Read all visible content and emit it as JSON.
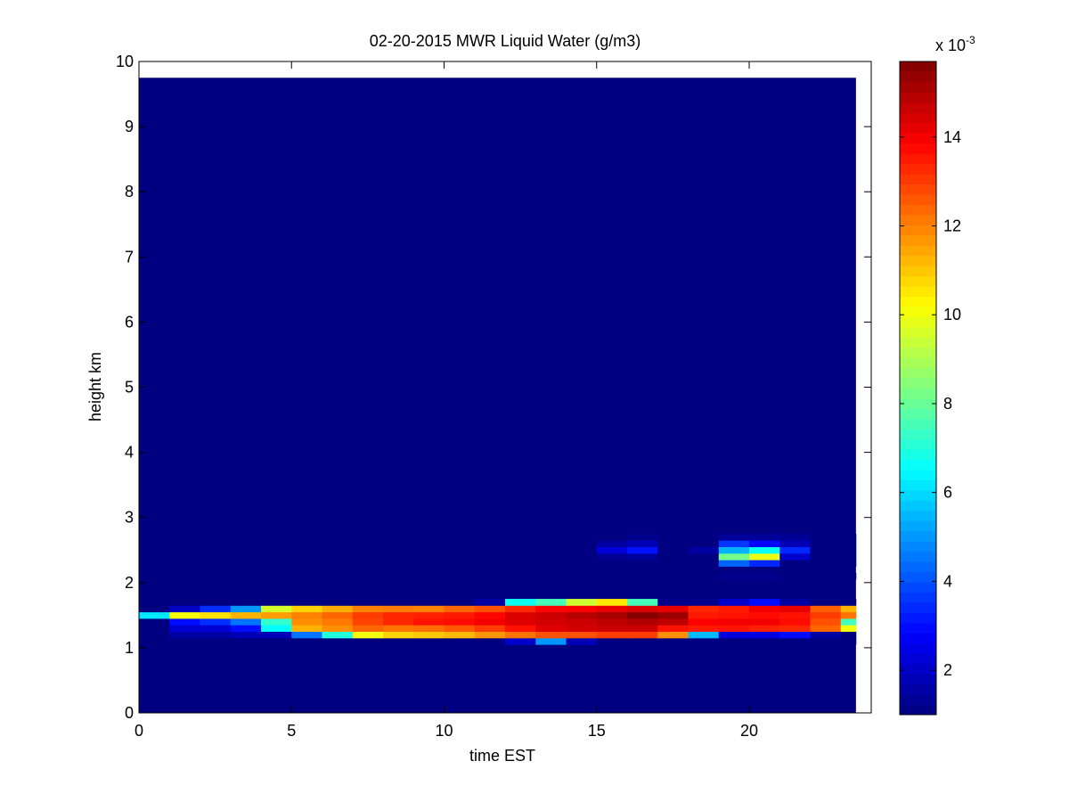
{
  "chart_data": {
    "type": "heatmap",
    "title": "02-20-2015 MWR Liquid Water (g/m3)",
    "xlabel": "time EST",
    "ylabel": "height km",
    "xlim": [
      0,
      24
    ],
    "ylim": [
      0,
      10
    ],
    "x_ticks": [
      0,
      5,
      10,
      15,
      20
    ],
    "y_ticks": [
      0,
      1,
      2,
      3,
      4,
      5,
      6,
      7,
      8,
      9,
      10
    ],
    "colormap": "jet",
    "colorbar": {
      "min": 1,
      "max": 15.7,
      "ticks": [
        2,
        4,
        6,
        8,
        10,
        12,
        14
      ],
      "scale_label_base": "x 10",
      "scale_label_exp": "-3"
    },
    "background_value": 1,
    "data_extent": {
      "x": [
        0,
        23.5
      ],
      "y": [
        0,
        9.75
      ]
    },
    "time_bins": [
      0.5,
      1.5,
      2.5,
      3.5,
      4.5,
      5.5,
      6.5,
      7.5,
      8.5,
      9.5,
      10.5,
      11.5,
      12.5,
      13.5,
      14.5,
      15.5,
      16.5,
      17.5,
      18.5,
      19.5,
      20.5,
      21.5,
      22.5,
      23.5
    ],
    "height_bins": [
      [
        1.05,
        1.15
      ],
      [
        1.15,
        1.25
      ],
      [
        1.25,
        1.35
      ],
      [
        1.35,
        1.45
      ],
      [
        1.45,
        1.55
      ],
      [
        1.55,
        1.65
      ],
      [
        1.65,
        1.75
      ],
      [
        2.05,
        2.15
      ],
      [
        2.25,
        2.35
      ],
      [
        2.35,
        2.45
      ],
      [
        2.45,
        2.55
      ],
      [
        2.55,
        2.65
      ],
      [
        2.65,
        2.75
      ]
    ],
    "cells": [
      {
        "height_bin": 0,
        "values": [
          1,
          1,
          1,
          1,
          1,
          1,
          1,
          1,
          1,
          1,
          1,
          1,
          2.1,
          5,
          1.8,
          1,
          1,
          1,
          1,
          1,
          1,
          1,
          1,
          1
        ]
      },
      {
        "height_bin": 1,
        "values": [
          1,
          1.5,
          1.5,
          1.8,
          1.8,
          4.5,
          7,
          10,
          10.8,
          11,
          11.2,
          11.7,
          12.2,
          12.7,
          12.7,
          13,
          13,
          11.8,
          5.5,
          2.3,
          2.4,
          3,
          1.5,
          1
        ]
      },
      {
        "height_bin": 2,
        "values": [
          1,
          2.2,
          2.2,
          3,
          6.5,
          11.3,
          11.8,
          12.4,
          12.2,
          12.3,
          12.6,
          13,
          13.6,
          14.3,
          14.5,
          14.6,
          14.6,
          13.6,
          13.5,
          13.6,
          13.4,
          13.3,
          12.4,
          10
        ]
      },
      {
        "height_bin": 3,
        "values": [
          1,
          3,
          3.5,
          4.5,
          7.2,
          11.8,
          12.1,
          12.9,
          13.3,
          13.6,
          13.7,
          14,
          14.3,
          14.5,
          14.6,
          14.8,
          15,
          14.8,
          13.9,
          14,
          14,
          13.7,
          12.7,
          7.5
        ]
      },
      {
        "height_bin": 4,
        "values": [
          6.2,
          10.1,
          10.6,
          11.3,
          11.6,
          12,
          12.4,
          13,
          13.3,
          13.4,
          13.5,
          13.8,
          14.4,
          14.6,
          14.9,
          15.1,
          15.6,
          15.3,
          13.5,
          13.6,
          13.7,
          13.6,
          13,
          12.2
        ]
      },
      {
        "height_bin": 5,
        "values": [
          1,
          2,
          3.5,
          5,
          9.6,
          10.8,
          11.4,
          12,
          12.1,
          12,
          12.4,
          12.7,
          13.3,
          13.8,
          13.9,
          14.2,
          14.4,
          14.2,
          13.3,
          13.5,
          14,
          14.2,
          12.5,
          11.3
        ]
      },
      {
        "height_bin": 6,
        "values": [
          1,
          1,
          1,
          1,
          1,
          1,
          1,
          1,
          1,
          1,
          1,
          1.5,
          6.7,
          7.5,
          9.5,
          10.5,
          7.5,
          1.2,
          1.2,
          2.1,
          3,
          1.5,
          1,
          1
        ]
      },
      {
        "height_bin": 7,
        "values": [
          1,
          1,
          1,
          1,
          1,
          1,
          1,
          1,
          1,
          1,
          1,
          1,
          1,
          1,
          1,
          1,
          1,
          1,
          1,
          1.2,
          1.2,
          1,
          1,
          1
        ]
      },
      {
        "height_bin": 8,
        "values": [
          1,
          1,
          1,
          1,
          1,
          1,
          1,
          1,
          1,
          1,
          1,
          1,
          1,
          1,
          1,
          1,
          1,
          1,
          1,
          4.3,
          3.4,
          1,
          1,
          1
        ]
      },
      {
        "height_bin": 9,
        "values": [
          1,
          1,
          1,
          1,
          1,
          1,
          1,
          1,
          1,
          1,
          1,
          1,
          1,
          1,
          1,
          1.3,
          1.4,
          1,
          1,
          8.2,
          9.9,
          2.1,
          1,
          1
        ]
      },
      {
        "height_bin": 10,
        "values": [
          1,
          1,
          1,
          1,
          1,
          1,
          1,
          1,
          1,
          1,
          1,
          1,
          1,
          1,
          1,
          2.3,
          3.1,
          1,
          1.5,
          5.4,
          6.6,
          3.4,
          1,
          1
        ]
      },
      {
        "height_bin": 11,
        "values": [
          1,
          1,
          1,
          1,
          1,
          1,
          1,
          1,
          1,
          1,
          1,
          1,
          1,
          1,
          1,
          1.5,
          1.8,
          1,
          1,
          3.6,
          2.9,
          1.8,
          1,
          1
        ]
      },
      {
        "height_bin": 12,
        "values": [
          1,
          1,
          1,
          1,
          1,
          1,
          1,
          1,
          1,
          1,
          1,
          1,
          1,
          1,
          1,
          1,
          1.2,
          1,
          1,
          1.4,
          1.4,
          1.3,
          1,
          1
        ]
      }
    ]
  }
}
